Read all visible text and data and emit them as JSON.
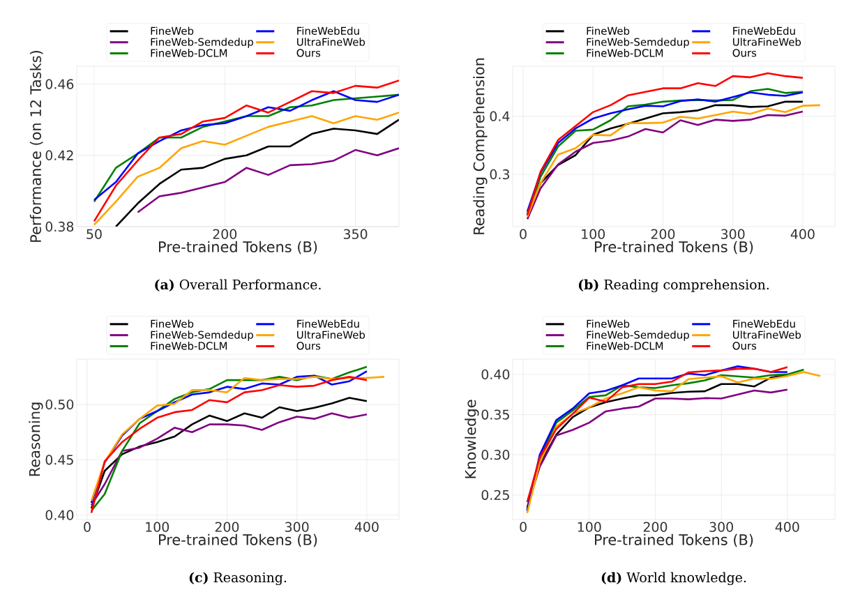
{
  "chart_data": [
    {
      "type": "line",
      "xlabel": "Pre-trained Tokens (B)",
      "ylabel": "Performance (on 12 Tasks)",
      "xlim": [
        30,
        400
      ],
      "ylim": [
        0.38,
        0.47
      ],
      "xticks": [
        50,
        200,
        350
      ],
      "yticks": [
        0.38,
        0.42,
        0.46
      ],
      "grid": true,
      "legend": "top",
      "annotations": [
        "**(a)** Overall Performance."
      ],
      "series": [
        {
          "name": "FineWeb",
          "color": "#000000",
          "x": [
            75,
            100,
            125,
            150,
            175,
            200,
            225,
            250,
            275,
            300,
            325,
            350,
            375,
            400
          ],
          "values": [
            0.38,
            0.393,
            0.404,
            0.412,
            0.413,
            0.418,
            0.42,
            0.425,
            0.425,
            0.432,
            0.435,
            0.434,
            0.432,
            0.44
          ]
        },
        {
          "name": "FineWeb-Semdedup",
          "color": "#800080",
          "x": [
            100,
            125,
            150,
            175,
            200,
            225,
            250,
            275,
            300,
            325,
            350,
            375,
            400
          ],
          "values": [
            0.388,
            0.397,
            0.399,
            0.402,
            0.405,
            0.413,
            0.409,
            0.4145,
            0.415,
            0.417,
            0.423,
            0.42,
            0.424
          ]
        },
        {
          "name": "FineWeb-DCLM",
          "color": "#008000",
          "x": [
            50,
            75,
            100,
            125,
            150,
            175,
            200,
            225,
            250,
            275,
            300,
            325,
            350,
            375,
            400
          ],
          "values": [
            0.394,
            0.413,
            0.421,
            0.43,
            0.43,
            0.436,
            0.439,
            0.442,
            0.442,
            0.447,
            0.448,
            0.451,
            0.452,
            0.453,
            0.454
          ]
        },
        {
          "name": "FineWebEdu",
          "color": "#0000ff",
          "x": [
            50,
            75,
            100,
            125,
            150,
            175,
            200,
            225,
            250,
            275,
            300,
            325,
            350,
            375,
            400
          ],
          "values": [
            0.395,
            0.405,
            0.421,
            0.428,
            0.434,
            0.437,
            0.438,
            0.442,
            0.447,
            0.445,
            0.451,
            0.456,
            0.451,
            0.45,
            0.454
          ]
        },
        {
          "name": "UltraFineWeb",
          "color": "#ffa500",
          "x": [
            50,
            75,
            100,
            125,
            150,
            175,
            200,
            225,
            250,
            275,
            300,
            325,
            350,
            375,
            400
          ],
          "values": [
            0.381,
            0.394,
            0.408,
            0.413,
            0.424,
            0.428,
            0.426,
            0.431,
            0.436,
            0.439,
            0.442,
            0.438,
            0.442,
            0.44,
            0.444
          ]
        },
        {
          "name": "Ours",
          "color": "#ff0000",
          "x": [
            50,
            75,
            100,
            125,
            150,
            175,
            200,
            225,
            250,
            275,
            300,
            325,
            350,
            375,
            400
          ],
          "values": [
            0.383,
            0.403,
            0.417,
            0.43,
            0.432,
            0.439,
            0.441,
            0.448,
            0.444,
            0.45,
            0.456,
            0.455,
            0.459,
            0.458,
            0.462
          ]
        }
      ]
    },
    {
      "type": "line",
      "xlabel": "Pre-trained Tokens (B)",
      "ylabel": "Reading Comprehension",
      "xlim": [
        -15,
        446
      ],
      "ylim": [
        0.21,
        0.486
      ],
      "xticks": [
        0,
        100,
        200,
        300,
        400
      ],
      "yticks": [
        0.3,
        0.4
      ],
      "grid": true,
      "legend": "top",
      "annotations": [
        "**(b)** Reading comprehension."
      ],
      "series": [
        {
          "name": "FineWeb",
          "color": "#000000",
          "x": [
            6,
            25,
            50,
            75,
            100,
            125,
            150,
            175,
            200,
            225,
            250,
            275,
            300,
            325,
            350,
            375,
            400
          ],
          "values": [
            0.228,
            0.285,
            0.316,
            0.333,
            0.368,
            0.379,
            0.387,
            0.396,
            0.405,
            0.407,
            0.41,
            0.419,
            0.419,
            0.416,
            0.417,
            0.425,
            0.425
          ]
        },
        {
          "name": "FineWeb-Semdedup",
          "color": "#800080",
          "x": [
            6,
            25,
            50,
            75,
            100,
            125,
            150,
            175,
            200,
            225,
            250,
            275,
            300,
            325,
            350,
            375,
            400
          ],
          "values": [
            0.223,
            0.276,
            0.317,
            0.339,
            0.354,
            0.358,
            0.365,
            0.378,
            0.372,
            0.393,
            0.385,
            0.394,
            0.392,
            0.394,
            0.402,
            0.401,
            0.408
          ]
        },
        {
          "name": "FineWeb-DCLM",
          "color": "#008000",
          "x": [
            6,
            25,
            50,
            75,
            100,
            125,
            150,
            175,
            200,
            225,
            250,
            275,
            300,
            325,
            350,
            375,
            400
          ],
          "values": [
            0.232,
            0.296,
            0.348,
            0.375,
            0.377,
            0.393,
            0.417,
            0.42,
            0.425,
            0.427,
            0.428,
            0.427,
            0.428,
            0.443,
            0.447,
            0.44,
            0.442
          ]
        },
        {
          "name": "FineWebEdu",
          "color": "#0000ff",
          "x": [
            6,
            25,
            50,
            75,
            100,
            125,
            150,
            175,
            200,
            225,
            250,
            275,
            300,
            325,
            350,
            375,
            400
          ],
          "values": [
            0.236,
            0.303,
            0.354,
            0.379,
            0.396,
            0.405,
            0.412,
            0.418,
            0.417,
            0.426,
            0.429,
            0.425,
            0.433,
            0.441,
            0.437,
            0.435,
            0.441
          ]
        },
        {
          "name": "UltraFineWeb",
          "color": "#ffa500",
          "x": [
            6,
            25,
            50,
            75,
            100,
            125,
            150,
            175,
            200,
            225,
            250,
            275,
            300,
            325,
            350,
            375,
            400,
            425
          ],
          "values": [
            0.227,
            0.285,
            0.334,
            0.345,
            0.368,
            0.367,
            0.388,
            0.388,
            0.389,
            0.399,
            0.396,
            0.402,
            0.408,
            0.404,
            0.413,
            0.407,
            0.418,
            0.419
          ]
        },
        {
          "name": "Ours",
          "color": "#ff0000",
          "x": [
            6,
            25,
            50,
            75,
            100,
            125,
            150,
            175,
            200,
            225,
            250,
            275,
            300,
            325,
            350,
            375,
            400
          ],
          "values": [
            0.23,
            0.305,
            0.359,
            0.383,
            0.407,
            0.419,
            0.436,
            0.442,
            0.448,
            0.448,
            0.457,
            0.452,
            0.469,
            0.467,
            0.474,
            0.469,
            0.466
          ]
        }
      ]
    },
    {
      "type": "line",
      "xlabel": "Pre-trained Tokens (B)",
      "ylabel": "Reasoning",
      "xlim": [
        -15,
        446
      ],
      "ylim": [
        0.396,
        0.541
      ],
      "xticks": [
        0,
        100,
        200,
        300,
        400
      ],
      "yticks": [
        {
          "value": 0.4,
          "label": "0.40"
        },
        0.45,
        {
          "value": 0.5,
          "label": "0.50"
        }
      ],
      "grid": true,
      "legend": "top",
      "annotations": [
        "**(c)** Reasoning."
      ],
      "series": [
        {
          "name": "FineWeb",
          "color": "#000000",
          "x": [
            6,
            25,
            50,
            75,
            100,
            125,
            150,
            175,
            200,
            225,
            250,
            275,
            300,
            325,
            350,
            375,
            400
          ],
          "values": [
            0.406,
            0.44,
            0.455,
            0.462,
            0.466,
            0.471,
            0.482,
            0.49,
            0.485,
            0.492,
            0.488,
            0.4975,
            0.494,
            0.497,
            0.501,
            0.506,
            0.503
          ]
        },
        {
          "name": "FineWeb-Semdedup",
          "color": "#800080",
          "x": [
            6,
            25,
            50,
            75,
            100,
            125,
            150,
            175,
            200,
            225,
            250,
            275,
            300,
            325,
            350,
            375,
            400
          ],
          "values": [
            0.409,
            0.428,
            0.458,
            0.461,
            0.469,
            0.479,
            0.475,
            0.482,
            0.482,
            0.481,
            0.477,
            0.484,
            0.489,
            0.487,
            0.492,
            0.488,
            0.491
          ]
        },
        {
          "name": "FineWeb-DCLM",
          "color": "#008000",
          "x": [
            6,
            25,
            50,
            75,
            100,
            125,
            150,
            175,
            200,
            225,
            250,
            275,
            300,
            325,
            350,
            375,
            400
          ],
          "values": [
            0.404,
            0.419,
            0.458,
            0.483,
            0.494,
            0.505,
            0.511,
            0.514,
            0.522,
            0.522,
            0.522,
            0.525,
            0.522,
            0.526,
            0.523,
            0.529,
            0.534
          ]
        },
        {
          "name": "FineWebEdu",
          "color": "#0000ff",
          "x": [
            6,
            25,
            50,
            75,
            100,
            125,
            150,
            175,
            200,
            225,
            250,
            275,
            300,
            325,
            350,
            375,
            400
          ],
          "values": [
            0.411,
            0.4475,
            0.472,
            0.487,
            0.494,
            0.502,
            0.509,
            0.511,
            0.516,
            0.514,
            0.519,
            0.518,
            0.525,
            0.526,
            0.518,
            0.521,
            0.53
          ]
        },
        {
          "name": "UltraFineWeb",
          "color": "#ffa500",
          "x": [
            6,
            25,
            50,
            75,
            100,
            125,
            150,
            175,
            200,
            225,
            250,
            275,
            300,
            325,
            350,
            375,
            400,
            425
          ],
          "values": [
            0.413,
            0.448,
            0.473,
            0.487,
            0.499,
            0.5005,
            0.513,
            0.513,
            0.511,
            0.524,
            0.522,
            0.523,
            0.523,
            0.525,
            0.523,
            0.524,
            0.524,
            0.525
          ]
        },
        {
          "name": "Ours",
          "color": "#ff0000",
          "x": [
            6,
            25,
            50,
            75,
            100,
            125,
            150,
            175,
            200,
            225,
            250,
            275,
            300,
            325,
            350,
            375,
            400
          ],
          "values": [
            0.402,
            0.4485,
            0.466,
            0.478,
            0.488,
            0.493,
            0.495,
            0.504,
            0.502,
            0.511,
            0.513,
            0.5175,
            0.516,
            0.517,
            0.522,
            0.525,
            0.522
          ]
        }
      ]
    },
    {
      "type": "line",
      "xlabel": "Pre-trained Tokens (B)",
      "ylabel": "Knowledge",
      "xlim": [
        -16,
        472
      ],
      "ylim": [
        0.2195,
        0.419
      ],
      "xticks": [
        0,
        100,
        200,
        300,
        400
      ],
      "yticks": [
        0.25,
        {
          "value": 0.3,
          "label": "0.30"
        },
        0.35,
        {
          "value": 0.4,
          "label": "0.40"
        }
      ],
      "grid": true,
      "legend": "top",
      "annotations": [
        "**(d)** World knowledge."
      ],
      "series": [
        {
          "name": "FineWeb",
          "color": "#000000",
          "x": [
            6,
            25,
            50,
            75,
            100,
            125,
            150,
            175,
            200,
            225,
            250,
            275,
            300,
            325,
            350,
            375,
            400
          ],
          "values": [
            0.2325,
            0.288,
            0.325,
            0.347,
            0.359,
            0.3655,
            0.37,
            0.374,
            0.374,
            0.377,
            0.3785,
            0.379,
            0.388,
            0.388,
            0.385,
            0.396,
            0.399
          ]
        },
        {
          "name": "FineWeb-Semdedup",
          "color": "#800080",
          "x": [
            6,
            25,
            50,
            75,
            100,
            125,
            150,
            175,
            200,
            225,
            250,
            275,
            300,
            325,
            350,
            375,
            400
          ],
          "values": [
            0.235,
            0.285,
            0.324,
            0.331,
            0.34,
            0.354,
            0.3575,
            0.36,
            0.37,
            0.37,
            0.369,
            0.3705,
            0.37,
            0.375,
            0.38,
            0.3775,
            0.381
          ]
        },
        {
          "name": "FineWeb-DCLM",
          "color": "#008000",
          "x": [
            6,
            25,
            50,
            75,
            100,
            125,
            150,
            175,
            200,
            225,
            250,
            275,
            300,
            325,
            350,
            375,
            400,
            425
          ],
          "values": [
            0.231,
            0.295,
            0.34,
            0.355,
            0.372,
            0.374,
            0.3865,
            0.384,
            0.383,
            0.3865,
            0.389,
            0.3925,
            0.399,
            0.3975,
            0.396,
            0.399,
            0.4,
            0.406
          ]
        },
        {
          "name": "FineWebEdu",
          "color": "#0000ff",
          "x": [
            6,
            25,
            50,
            75,
            100,
            125,
            150,
            175,
            200,
            225,
            250,
            275,
            300,
            325,
            350,
            375,
            400
          ],
          "values": [
            0.23,
            0.3,
            0.343,
            0.3575,
            0.3765,
            0.3795,
            0.3865,
            0.395,
            0.395,
            0.395,
            0.401,
            0.399,
            0.405,
            0.41,
            0.407,
            0.403,
            0.403
          ]
        },
        {
          "name": "UltraFineWeb",
          "color": "#ffa500",
          "x": [
            6,
            25,
            50,
            75,
            100,
            125,
            150,
            175,
            200,
            225,
            250,
            275,
            300,
            325,
            350,
            375,
            400,
            425,
            450
          ],
          "values": [
            0.2275,
            0.29,
            0.335,
            0.351,
            0.359,
            0.37,
            0.3765,
            0.384,
            0.38,
            0.379,
            0.394,
            0.396,
            0.3975,
            0.39,
            0.395,
            0.3945,
            0.398,
            0.403,
            0.398
          ]
        },
        {
          "name": "Ours",
          "color": "#ff0000",
          "x": [
            6,
            25,
            50,
            75,
            100,
            125,
            150,
            175,
            200,
            225,
            250,
            275,
            300,
            325,
            350,
            375,
            400
          ],
          "values": [
            0.241,
            0.2965,
            0.332,
            0.351,
            0.371,
            0.366,
            0.384,
            0.388,
            0.388,
            0.391,
            0.4025,
            0.404,
            0.405,
            0.407,
            0.407,
            0.403,
            0.409
          ]
        }
      ]
    }
  ]
}
